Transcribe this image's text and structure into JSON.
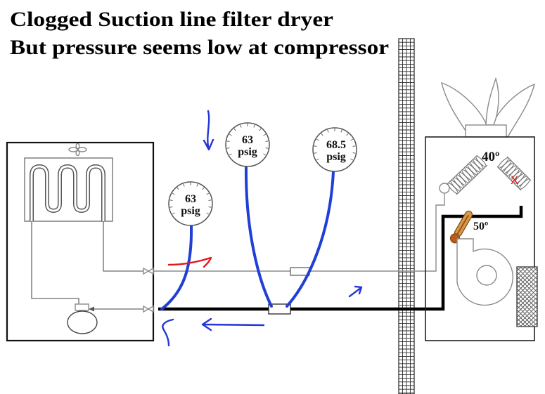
{
  "title": {
    "line1": "Clogged Suction line filter dryer",
    "line2": "But pressure seems low at compressor"
  },
  "gauges": [
    {
      "value": "63",
      "unit": "psig"
    },
    {
      "value": "63",
      "unit": "psig"
    },
    {
      "value": "68.5",
      "unit": "psig"
    }
  ],
  "evaporator": {
    "coil_temp": "40º",
    "fault_mark": "X"
  },
  "supply_air": {
    "temp": "50º"
  },
  "colors": {
    "hose": "#1f3fd6",
    "annotation_blue": "#2536d6",
    "annotation_red": "#e3171b",
    "fault_mark": "#e3171b",
    "suction_line": "#000000",
    "liquid_line": "#8c8c8c",
    "thermometer": "#d59a4a"
  },
  "icons": {
    "condenser_fan": "fan-icon",
    "compressor": "compressor-icon",
    "valves": "service-valve-icon",
    "gauges": "pressure-gauge-icon",
    "evaporator": "evaporator-coil-icon",
    "thermometer": "thermometer-icon",
    "blower": "blower-icon",
    "air_filter": "air-filter-icon",
    "diffuser": "supply-diffuser-icon"
  }
}
